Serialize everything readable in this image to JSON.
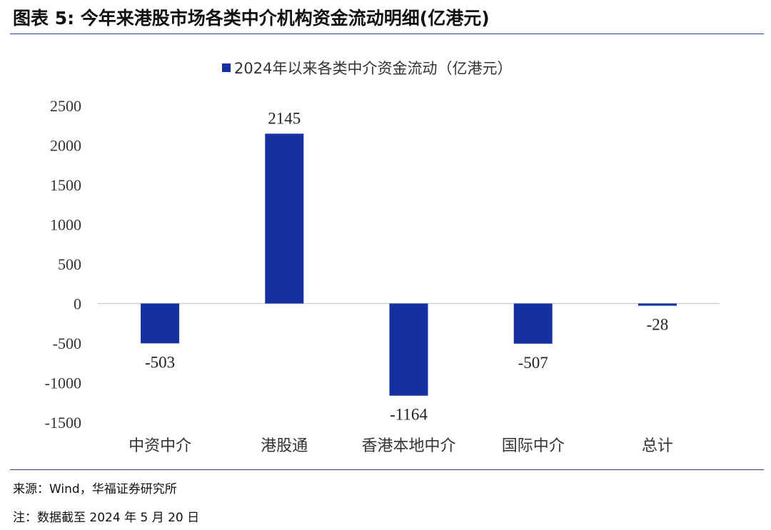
{
  "figure": {
    "title": "图表 5:  今年来港股市场各类中介机构资金流动明细(亿港元)",
    "source": "来源：Wind，华福证券研究所",
    "note": "注：数据截至 2024 年 5 月 20 日"
  },
  "chart_data": {
    "type": "bar",
    "categories": [
      "中资中介",
      "港股通",
      "香港本地中介",
      "国际中介",
      "总计"
    ],
    "series": [
      {
        "name": "2024年以来各类中介资金流动（亿港元）",
        "values": [
          -503,
          2145,
          -1164,
          -507,
          -28
        ],
        "color": "#1530a0"
      }
    ],
    "ylim": [
      -1500,
      2500
    ],
    "yticks": [
      2500,
      2000,
      1500,
      1000,
      500,
      0,
      -500,
      -1000,
      -1500
    ],
    "data_labels": [
      "-503",
      "2145",
      "-1164",
      "-507",
      "-28"
    ],
    "legend_position": "top-center",
    "grid": false,
    "zero_line_color": "#d0d0d0"
  }
}
